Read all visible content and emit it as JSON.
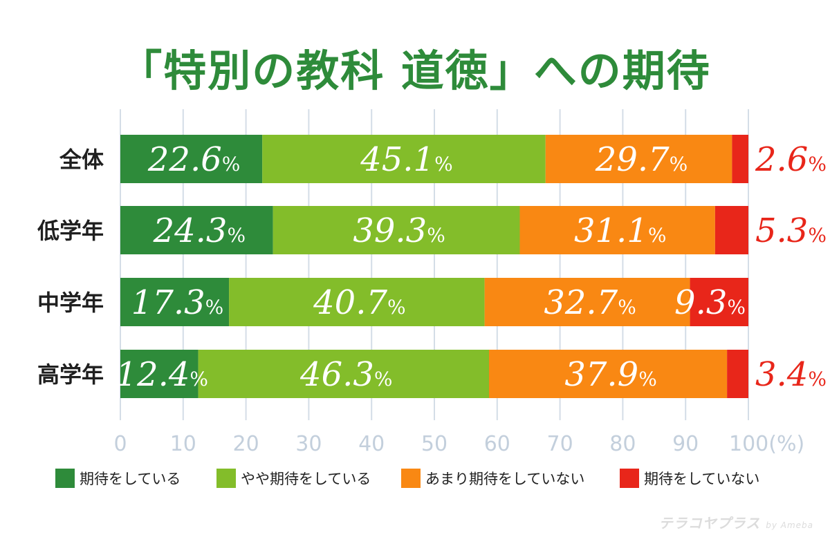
{
  "chart_data": {
    "type": "bar",
    "orientation": "horizontal",
    "stacked": true,
    "title": "「特別の教科 道徳」への期待",
    "categories": [
      "全体",
      "低学年",
      "中学年",
      "高学年"
    ],
    "series": [
      {
        "name": "期待をしている",
        "color": "#2e8b3a",
        "values": [
          22.6,
          24.3,
          17.3,
          12.4
        ]
      },
      {
        "name": "やや期待をしている",
        "color": "#83bd2a",
        "values": [
          45.1,
          39.3,
          40.7,
          46.3
        ]
      },
      {
        "name": "あまり期待をしていない",
        "color": "#f98813",
        "values": [
          29.7,
          31.1,
          32.7,
          37.9
        ]
      },
      {
        "name": "期待をしていない",
        "color": "#e8261a",
        "values": [
          2.6,
          5.3,
          9.3,
          3.4
        ]
      }
    ],
    "percent_symbol": "%",
    "xticks": [
      0,
      10,
      20,
      30,
      40,
      50,
      60,
      70,
      80,
      90,
      100
    ],
    "xlim": [
      0,
      100
    ],
    "xlabel": "(%)",
    "grid": true,
    "legend_position": "bottom"
  },
  "watermark": {
    "brand": "テラコヤプラス",
    "by": "by Ameba"
  }
}
